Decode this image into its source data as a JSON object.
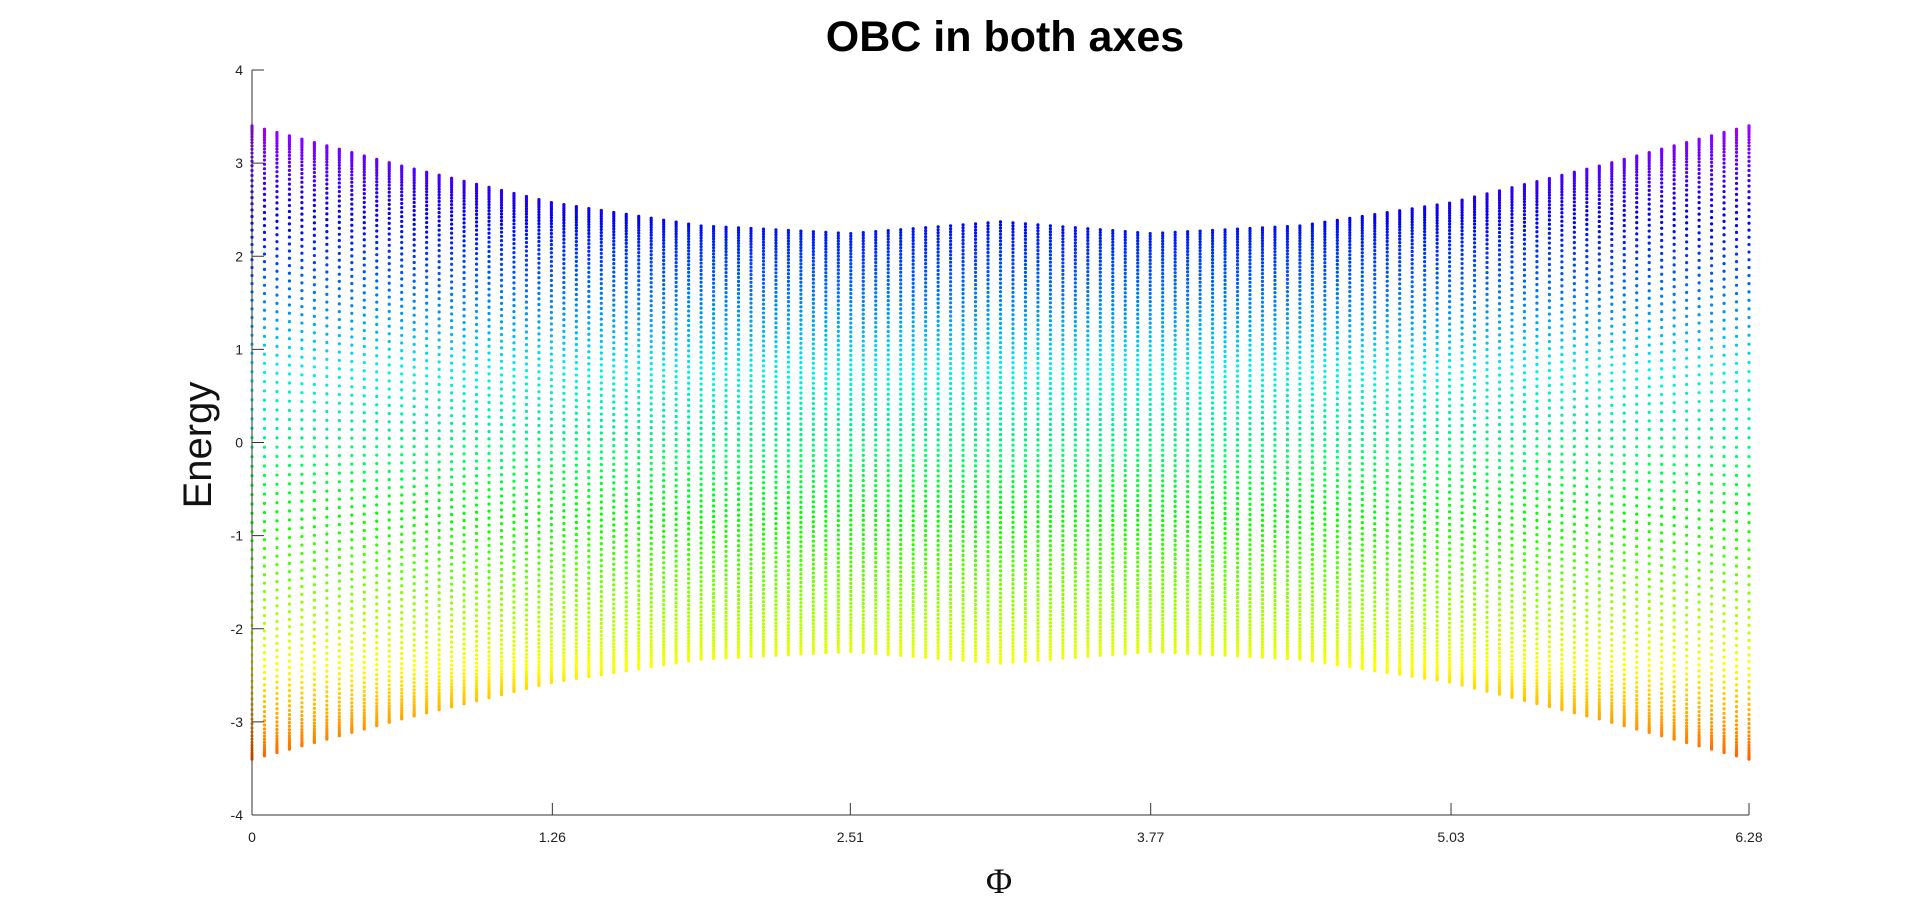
{
  "chart_data": {
    "type": "scatter",
    "title": "OBC in both axes",
    "xlabel": "Φ",
    "ylabel": "Energy",
    "xlim": [
      0,
      6.28
    ],
    "ylim": [
      -4,
      4
    ],
    "x_ticks": [
      0,
      1.26,
      2.51,
      3.77,
      5.03,
      6.28
    ],
    "x_tick_labels": [
      "0",
      "1.26",
      "2.51",
      "3.77",
      "5.03",
      "6.28"
    ],
    "y_ticks": [
      -4,
      -3,
      -2,
      -1,
      0,
      1,
      2,
      3,
      4
    ],
    "y_tick_labels": [
      "-4",
      "-3",
      "-2",
      "-1",
      "0",
      "1",
      "2",
      "3",
      "4"
    ],
    "grid": false,
    "legend": "none",
    "colormap": "hsv",
    "color_by": "energy",
    "colors": {
      "energy_min": "#e8101a",
      "energy_low": "#ffff00",
      "energy_mid": "#00ffff",
      "energy_high": "#1010e0",
      "energy_max": "#e8101a"
    },
    "series": [
      {
        "marker": "dot",
        "x_samples": 121,
        "levels_per_x": 100,
        "envelope_x": [
          0,
          0.63,
          1.26,
          1.88,
          2.51,
          3.14,
          3.77,
          4.4,
          5.03,
          5.65,
          6.28
        ],
        "envelope_upper": [
          3.95,
          3.45,
          3.0,
          2.72,
          2.63,
          2.78,
          2.63,
          2.72,
          3.0,
          3.45,
          3.95
        ],
        "envelope_lower": [
          -3.95,
          -3.45,
          -3.0,
          -2.72,
          -2.63,
          -2.78,
          -2.63,
          -2.72,
          -3.0,
          -3.45,
          -3.95
        ]
      }
    ]
  }
}
